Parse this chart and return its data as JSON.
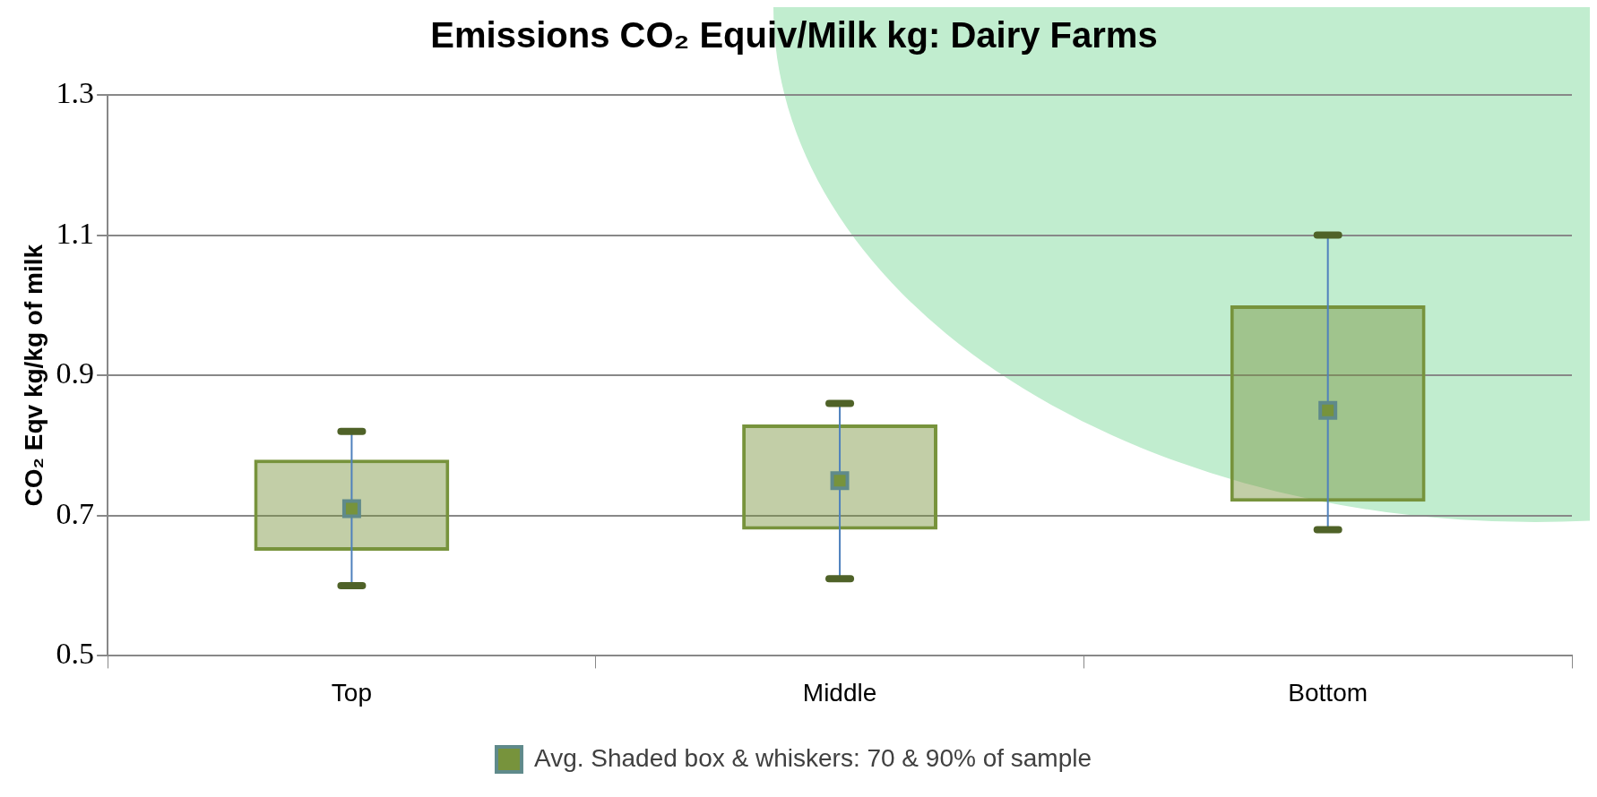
{
  "chart_data": {
    "type": "box",
    "title": "Emissions CO₂ Equiv/Milk kg: Dairy Farms",
    "ylabel": "CO₂ Eqv kg/kg of milk",
    "categories": [
      "Top",
      "Middle",
      "Bottom"
    ],
    "ylim": [
      0.5,
      1.3
    ],
    "yticks": [
      0.5,
      0.7,
      0.9,
      1.1,
      1.3
    ],
    "grid": "y",
    "legend": "bottom",
    "marker": "square",
    "series": [
      {
        "name": "Avg. Shaded box & whiskers: 70 & 90% of sample",
        "color": "#77933c",
        "boxes": [
          {
            "low": 0.6,
            "q1": 0.65,
            "q3": 0.78,
            "high": 0.82,
            "mean": 0.71
          },
          {
            "low": 0.61,
            "q1": 0.68,
            "q3": 0.83,
            "high": 0.86,
            "mean": 0.75
          },
          {
            "low": 0.68,
            "q1": 0.72,
            "q3": 1.0,
            "high": 1.1,
            "mean": 0.85
          }
        ]
      }
    ]
  }
}
